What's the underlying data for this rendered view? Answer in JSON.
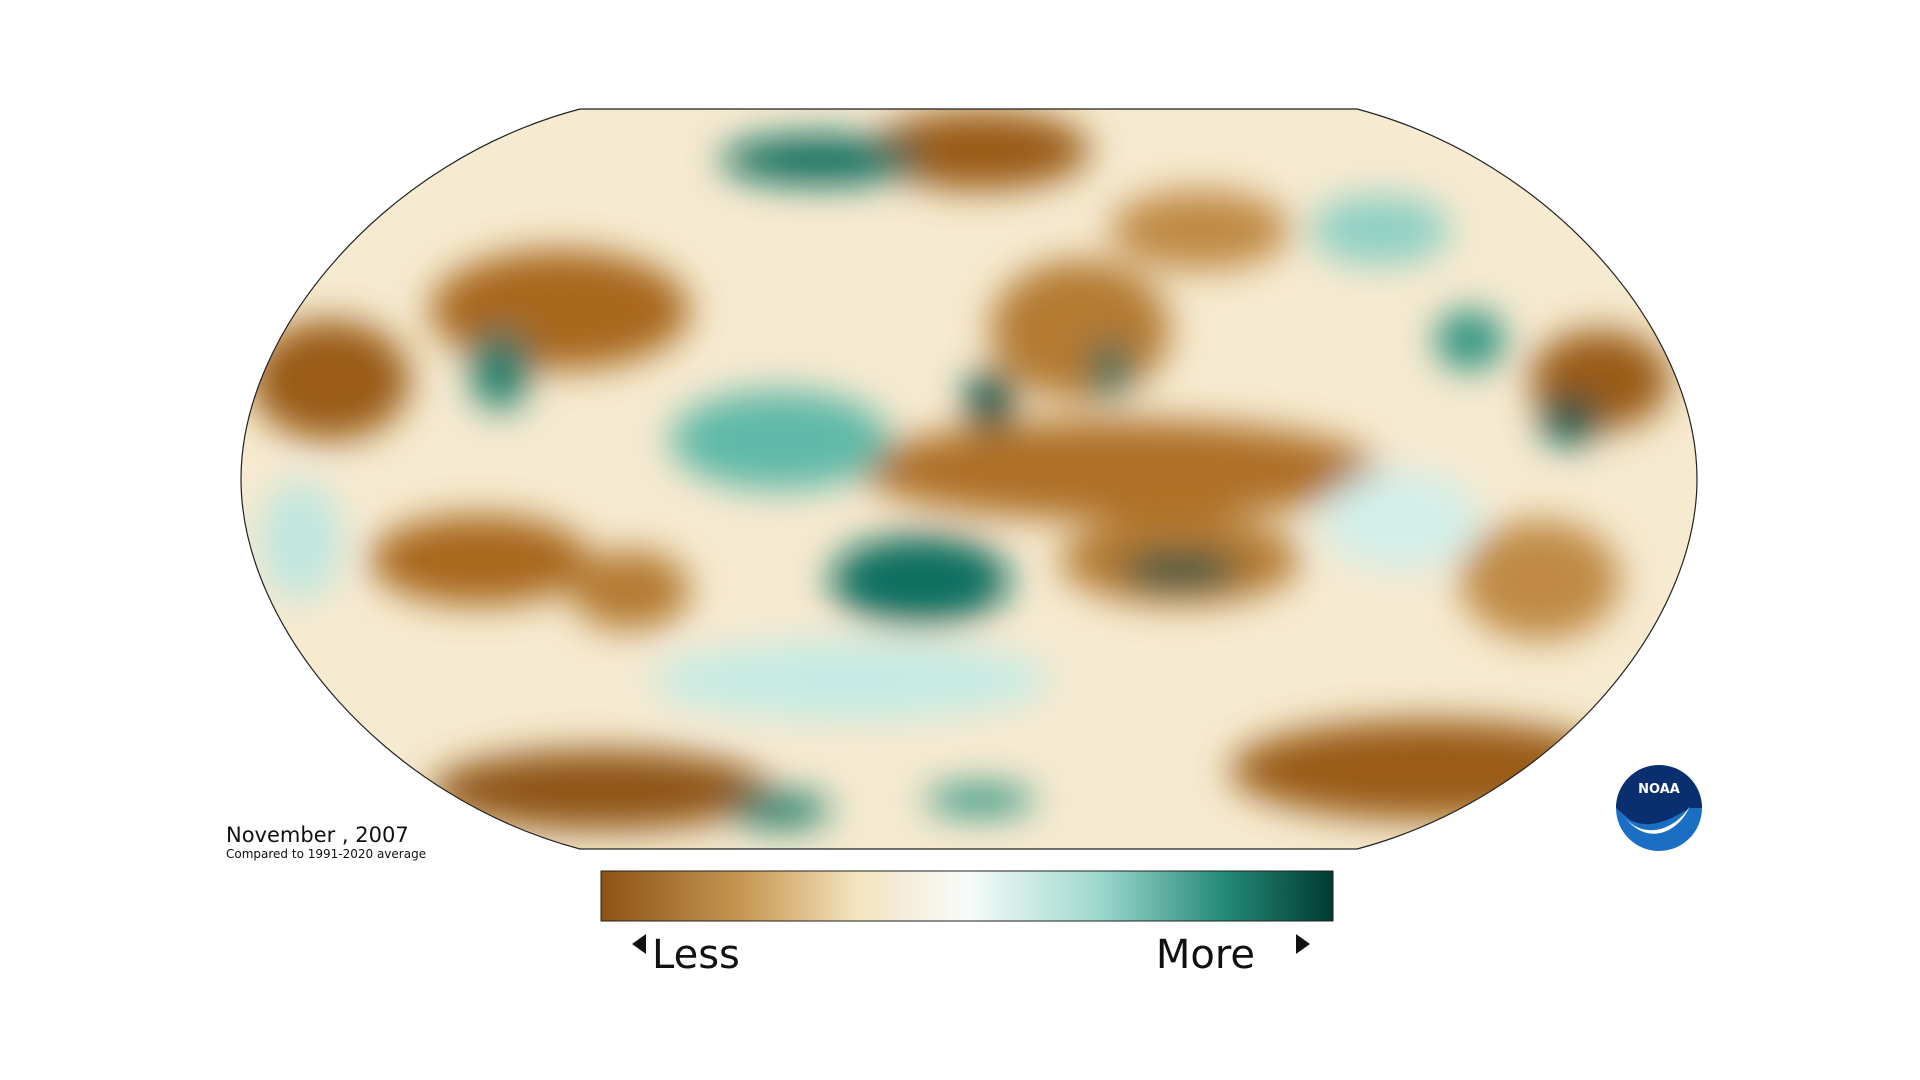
{
  "map": {
    "date_label": "November , 2007",
    "comparison_note": "Compared to 1991-2020 average",
    "legend": {
      "low_label": "Less",
      "high_label": "More"
    },
    "logo_text": "NOAA"
  }
}
